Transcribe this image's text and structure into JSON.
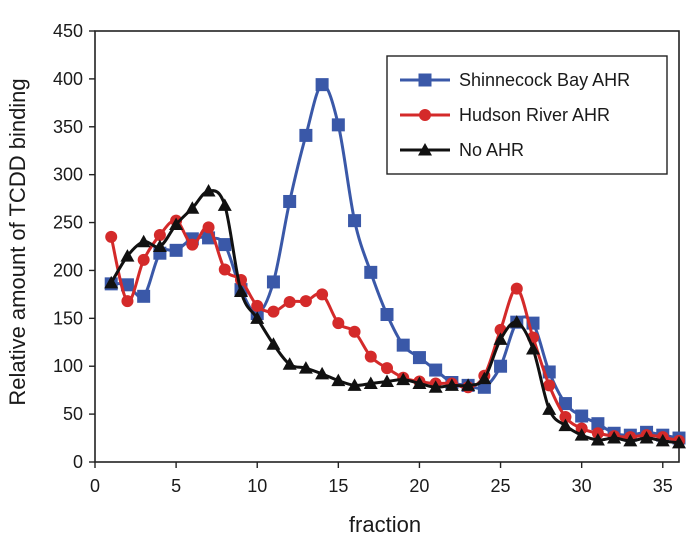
{
  "chart_data": {
    "type": "line",
    "title": "",
    "xlabel": "fraction",
    "ylabel": "Relative amount of TCDD binding",
    "xlim": [
      0,
      36
    ],
    "ylim": [
      0,
      450
    ],
    "x_ticks": [
      0,
      5,
      10,
      15,
      20,
      25,
      30,
      35
    ],
    "y_ticks": [
      0,
      50,
      100,
      150,
      200,
      250,
      300,
      350,
      400,
      450
    ],
    "grid": false,
    "legend_position": "top-right",
    "series": [
      {
        "name": "Shinnecock Bay AHR",
        "color": "#3a58a8",
        "marker": "square",
        "x": [
          1,
          2,
          3,
          4,
          5,
          6,
          7,
          8,
          9,
          10,
          11,
          12,
          13,
          14,
          15,
          16,
          17,
          18,
          19,
          20,
          21,
          22,
          23,
          24,
          25,
          26,
          27,
          28,
          29,
          30,
          31,
          32,
          33,
          34,
          35,
          36
        ],
        "y": [
          186,
          185,
          173,
          218,
          221,
          233,
          234,
          227,
          180,
          155,
          188,
          272,
          341,
          394,
          352,
          252,
          198,
          154,
          122,
          109,
          96,
          83,
          80,
          78,
          100,
          146,
          145,
          94,
          61,
          48,
          40,
          30,
          28,
          31,
          28,
          25
        ]
      },
      {
        "name": "Hudson River AHR",
        "color": "#d42a2a",
        "marker": "circle",
        "x": [
          1,
          2,
          3,
          4,
          5,
          6,
          7,
          8,
          9,
          10,
          11,
          12,
          13,
          14,
          15,
          16,
          17,
          18,
          19,
          20,
          21,
          22,
          23,
          24,
          25,
          26,
          27,
          28,
          29,
          30,
          31,
          32,
          33,
          34,
          35,
          36
        ],
        "y": [
          235,
          168,
          211,
          237,
          252,
          227,
          245,
          201,
          190,
          163,
          157,
          167,
          168,
          175,
          145,
          136,
          110,
          98,
          88,
          84,
          82,
          82,
          78,
          90,
          138,
          181,
          130,
          80,
          47,
          35,
          30,
          27,
          26,
          28,
          26,
          22
        ]
      },
      {
        "name": "No AHR",
        "color": "#111111",
        "marker": "triangle",
        "x": [
          1,
          2,
          3,
          4,
          5,
          6,
          7,
          8,
          9,
          10,
          11,
          12,
          13,
          14,
          15,
          16,
          17,
          18,
          19,
          20,
          21,
          22,
          23,
          24,
          25,
          26,
          27,
          28,
          29,
          30,
          31,
          32,
          33,
          34,
          35,
          36
        ],
        "y": [
          187,
          215,
          230,
          225,
          248,
          265,
          283,
          268,
          178,
          150,
          123,
          102,
          98,
          92,
          85,
          80,
          82,
          84,
          86,
          82,
          78,
          80,
          80,
          87,
          128,
          146,
          118,
          55,
          38,
          28,
          23,
          25,
          22,
          25,
          22,
          20
        ]
      }
    ]
  }
}
